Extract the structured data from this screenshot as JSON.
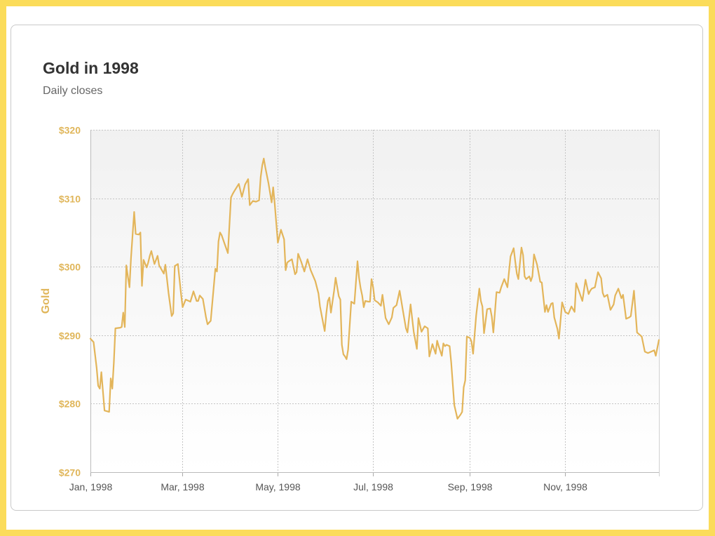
{
  "chart_data": {
    "type": "line",
    "title": "Gold in 1998",
    "subtitle": "Daily closes",
    "xlabel": "",
    "ylabel": "Gold",
    "xlim": [
      "1998-01-01",
      "1998-12-31"
    ],
    "ylim": [
      270,
      320
    ],
    "y_ticks": [
      270,
      280,
      290,
      300,
      310,
      320
    ],
    "y_tick_labels": [
      "$270",
      "$280",
      "$290",
      "$300",
      "$310",
      "$320"
    ],
    "x_ticks": [
      "1998-01-01",
      "1998-03-01",
      "1998-05-01",
      "1998-07-01",
      "1998-09-01",
      "1998-11-01"
    ],
    "x_tick_labels": [
      "Jan, 1998",
      "Mar, 1998",
      "May, 1998",
      "Jul, 1998",
      "Sep, 1998",
      "Nov, 1998"
    ],
    "grid": true,
    "line_color": "#e3b55a",
    "series": [
      {
        "name": "",
        "x": [
          "1998-01-01",
          "1998-01-03",
          "1998-01-05",
          "1998-01-06",
          "1998-01-07",
          "1998-01-08",
          "1998-01-10",
          "1998-01-13",
          "1998-01-14",
          "1998-01-15",
          "1998-01-16",
          "1998-01-17",
          "1998-01-20",
          "1998-01-21",
          "1998-01-22",
          "1998-01-23",
          "1998-01-24",
          "1998-01-25",
          "1998-01-26",
          "1998-01-27",
          "1998-01-29",
          "1998-01-30",
          "1998-02-01",
          "1998-02-02",
          "1998-02-03",
          "1998-02-04",
          "1998-02-06",
          "1998-02-07",
          "1998-02-08",
          "1998-02-09",
          "1998-02-11",
          "1998-02-13",
          "1998-02-14",
          "1998-02-17",
          "1998-02-18",
          "1998-02-20",
          "1998-02-22",
          "1998-02-23",
          "1998-02-24",
          "1998-02-26",
          "1998-02-28",
          "1998-03-01",
          "1998-03-03",
          "1998-03-05",
          "1998-03-06",
          "1998-03-08",
          "1998-03-10",
          "1998-03-11",
          "1998-03-12",
          "1998-03-14",
          "1998-03-16",
          "1998-03-17",
          "1998-03-19",
          "1998-03-22",
          "1998-03-23",
          "1998-03-24",
          "1998-03-25",
          "1998-03-26",
          "1998-03-28",
          "1998-03-30",
          "1998-04-01",
          "1998-04-02",
          "1998-04-03",
          "1998-04-06",
          "1998-04-08",
          "1998-04-10",
          "1998-04-12",
          "1998-04-13",
          "1998-04-15",
          "1998-04-17",
          "1998-04-19",
          "1998-04-20",
          "1998-04-21",
          "1998-04-22",
          "1998-04-23",
          "1998-04-25",
          "1998-04-27",
          "1998-04-28",
          "1998-04-29",
          "1998-05-01",
          "1998-05-03",
          "1998-05-05",
          "1998-05-06",
          "1998-05-07",
          "1998-05-08",
          "1998-05-10",
          "1998-05-12",
          "1998-05-13",
          "1998-05-14",
          "1998-05-16",
          "1998-05-18",
          "1998-05-20",
          "1998-05-22",
          "1998-05-25",
          "1998-05-27",
          "1998-05-28",
          "1998-05-31",
          "1998-06-01",
          "1998-06-02",
          "1998-06-03",
          "1998-06-04",
          "1998-06-06",
          "1998-06-07",
          "1998-06-09",
          "1998-06-10",
          "1998-06-11",
          "1998-06-12",
          "1998-06-13",
          "1998-06-14",
          "1998-06-15",
          "1998-06-17",
          "1998-06-19",
          "1998-06-21",
          "1998-06-22",
          "1998-06-23",
          "1998-06-24",
          "1998-06-25",
          "1998-06-26",
          "1998-06-28",
          "1998-06-29",
          "1998-06-30",
          "1998-07-01",
          "1998-07-02",
          "1998-07-04",
          "1998-07-06",
          "1998-07-07",
          "1998-07-09",
          "1998-07-11",
          "1998-07-13",
          "1998-07-14",
          "1998-07-16",
          "1998-07-18",
          "1998-07-20",
          "1998-07-22",
          "1998-07-23",
          "1998-07-25",
          "1998-07-27",
          "1998-07-29",
          "1998-07-30",
          "1998-08-01",
          "1998-08-03",
          "1998-08-05",
          "1998-08-06",
          "1998-08-08",
          "1998-08-10",
          "1998-08-11",
          "1998-08-12",
          "1998-08-14",
          "1998-08-15",
          "1998-08-16",
          "1998-08-17",
          "1998-08-19",
          "1998-08-20",
          "1998-08-22",
          "1998-08-24",
          "1998-08-26",
          "1998-08-27",
          "1998-08-28",
          "1998-08-29",
          "1998-08-30",
          "1998-09-01",
          "1998-09-02",
          "1998-09-03",
          "1998-09-05",
          "1998-09-07",
          "1998-09-08",
          "1998-09-09",
          "1998-09-10",
          "1998-09-12",
          "1998-09-14",
          "1998-09-15",
          "1998-09-16",
          "1998-09-18",
          "1998-09-20",
          "1998-09-21",
          "1998-09-23",
          "1998-09-25",
          "1998-09-27",
          "1998-09-29",
          "1998-09-30",
          "1998-10-01",
          "1998-10-02",
          "1998-10-04",
          "1998-10-05",
          "1998-10-06",
          "1998-10-07",
          "1998-10-09",
          "1998-10-10",
          "1998-10-11",
          "1998-10-12",
          "1998-10-14",
          "1998-10-16",
          "1998-10-17",
          "1998-10-19",
          "1998-10-20",
          "1998-10-21",
          "1998-10-23",
          "1998-10-24",
          "1998-10-25",
          "1998-10-27",
          "1998-10-28",
          "1998-10-30",
          "1998-11-01",
          "1998-11-03",
          "1998-11-05",
          "1998-11-07",
          "1998-11-08",
          "1998-11-10",
          "1998-11-12",
          "1998-11-14",
          "1998-11-16",
          "1998-11-17",
          "1998-11-18",
          "1998-11-20",
          "1998-11-22",
          "1998-11-24",
          "1998-11-25",
          "1998-11-26",
          "1998-11-28",
          "1998-11-30",
          "1998-12-02",
          "1998-12-03",
          "1998-12-05",
          "1998-12-07",
          "1998-12-08",
          "1998-12-10",
          "1998-12-12",
          "1998-12-13",
          "1998-12-15",
          "1998-12-17",
          "1998-12-19",
          "1998-12-20",
          "1998-12-22",
          "1998-12-24",
          "1998-12-26",
          "1998-12-28",
          "1998-12-29",
          "1998-12-31"
        ],
        "values": [
          289.5,
          289.0,
          285.2,
          282.6,
          282.2,
          284.6,
          279.0,
          278.8,
          283.7,
          282.2,
          286.0,
          291.0,
          291.1,
          291.2,
          293.3,
          291.2,
          300.2,
          298.5,
          297.0,
          301.3,
          308.0,
          304.8,
          304.7,
          305.0,
          297.2,
          301.0,
          299.9,
          300.6,
          301.6,
          302.3,
          300.4,
          301.6,
          300.2,
          299.0,
          300.3,
          296.2,
          292.8,
          293.2,
          300.1,
          300.4,
          296.1,
          294.1,
          295.2,
          295.0,
          294.9,
          296.4,
          295.0,
          295.0,
          295.8,
          295.3,
          292.6,
          291.6,
          292.1,
          299.7,
          299.3,
          303.7,
          305.0,
          304.6,
          303.3,
          302.0,
          310.1,
          310.6,
          311.0,
          312.1,
          310.2,
          312.0,
          312.8,
          309.0,
          309.6,
          309.5,
          309.7,
          313.1,
          314.8,
          315.8,
          314.5,
          312.2,
          309.4,
          311.6,
          309.2,
          303.5,
          305.4,
          304.0,
          299.5,
          300.6,
          300.8,
          301.1,
          298.9,
          299.2,
          301.9,
          300.7,
          299.3,
          301.1,
          299.5,
          297.9,
          296.1,
          294.2,
          290.6,
          293.1,
          295.0,
          295.5,
          293.3,
          296.5,
          298.4,
          295.7,
          295.2,
          288.6,
          287.2,
          286.9,
          286.5,
          287.9,
          294.9,
          294.6,
          300.8,
          298.4,
          296.9,
          295.8,
          294.1,
          295.0,
          294.9,
          294.9,
          298.2,
          297.0,
          295.1,
          294.8,
          294.3,
          295.9,
          292.5,
          291.6,
          292.6,
          294.0,
          294.4,
          296.5,
          293.7,
          291.0,
          290.4,
          294.5,
          290.5,
          288.0,
          292.5,
          290.5,
          291.3,
          291.0,
          286.9,
          288.7,
          287.3,
          289.2,
          288.4,
          287.0,
          288.8,
          288.4,
          288.6,
          288.4,
          286.0,
          279.8,
          277.8,
          278.4,
          278.8,
          282.4,
          283.4,
          289.8,
          289.6,
          289.1,
          287.3,
          292.9,
          296.8,
          295.0,
          294.2,
          290.3,
          293.8,
          293.9,
          292.7,
          290.4,
          296.3,
          296.2,
          297.0,
          298.2,
          297.0,
          301.5,
          302.7,
          300.8,
          299.0,
          298.2,
          302.8,
          301.7,
          298.6,
          298.2,
          298.6,
          297.9,
          298.6,
          301.8,
          300.3,
          297.8,
          297.7,
          293.4,
          294.4,
          293.4,
          294.6,
          294.7,
          292.6,
          290.9,
          289.5,
          294.8,
          293.4,
          293.1,
          294.2,
          293.4,
          297.6,
          296.3,
          295.0,
          298.1,
          296.0,
          296.5,
          296.8,
          297.0,
          299.2,
          298.3,
          296.2,
          295.6,
          295.9,
          293.7,
          294.5,
          295.8,
          296.8,
          295.4,
          295.9,
          292.4,
          292.6,
          292.8,
          296.5,
          290.4,
          290.0,
          289.8,
          287.6,
          287.4,
          287.6,
          287.8,
          287.0,
          289.3
        ]
      }
    ]
  }
}
